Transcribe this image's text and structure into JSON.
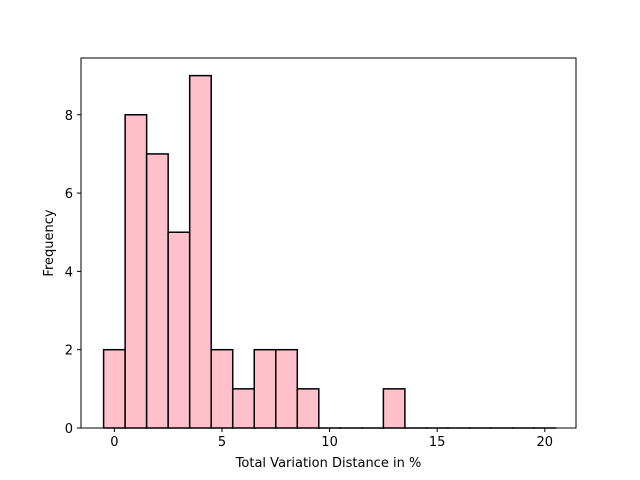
{
  "chart_data": {
    "type": "bar",
    "title": "",
    "xlabel": "Total Variation Distance in %",
    "ylabel": "Frequency",
    "xlim": [
      -1.55,
      21.45
    ],
    "ylim": [
      0,
      9.45
    ],
    "xticks": [
      0,
      5,
      10,
      15,
      20
    ],
    "xtick_labels": [
      "0",
      "5",
      "10",
      "15",
      "20"
    ],
    "yticks": [
      0,
      2,
      4,
      6,
      8
    ],
    "ytick_labels": [
      "0",
      "2",
      "4",
      "6",
      "8"
    ],
    "bin_edges": [
      -0.5,
      0.5,
      1.5,
      2.5,
      3.5,
      4.5,
      5.5,
      6.5,
      7.5,
      8.5,
      9.5,
      10.5,
      11.5,
      12.5,
      13.5,
      14.5,
      15.5,
      16.5,
      17.5,
      18.5,
      19.5,
      20.5
    ],
    "values": [
      2,
      8,
      7,
      5,
      9,
      2,
      1,
      2,
      2,
      1,
      0,
      0,
      0,
      1,
      0,
      0,
      0,
      0,
      0,
      0,
      0
    ],
    "bar_fill": "#ffc0cb",
    "bar_edge": "#000000",
    "grid": false,
    "legend": "none"
  }
}
